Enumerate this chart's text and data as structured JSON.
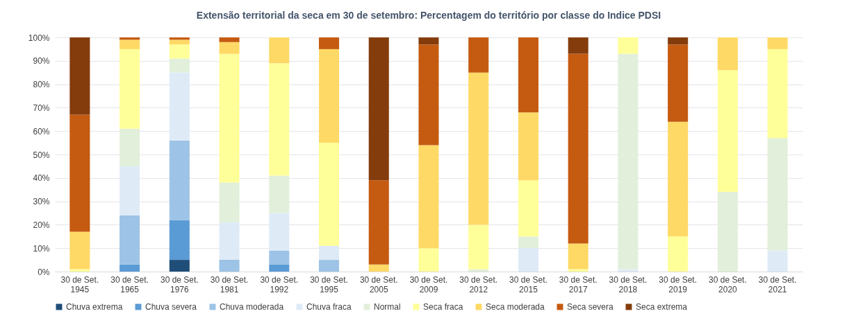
{
  "chart_data": {
    "type": "bar",
    "stacked": true,
    "title": "Extensão territorial da seca em 30 de setembro: Percentagem do território por classe do Indice PDSI",
    "categories": [
      "30 de Set. 1945",
      "30 de Set. 1965",
      "30 de Set. 1976",
      "30 de Set. 1981",
      "30 de Set. 1992",
      "30 de Set. 1995",
      "30 de Set. 2005",
      "30 de Set. 2009",
      "30 de Set. 2012",
      "30 de Set. 2015",
      "30 de Set. 2017",
      "30 de Set. 2018",
      "30 de Set. 2019",
      "30 de Set. 2020",
      "30 de Set. 2021"
    ],
    "series": [
      {
        "name": "Chuva extrema",
        "color": "#1f4e79",
        "values": [
          0,
          0,
          5,
          0,
          0,
          0,
          0,
          0,
          0,
          0,
          0,
          0,
          0,
          0,
          0
        ]
      },
      {
        "name": "Chuva severa",
        "color": "#5b9bd5",
        "values": [
          0,
          3,
          17,
          0,
          3,
          0,
          0,
          0,
          0,
          0,
          0,
          0,
          0,
          0,
          0
        ]
      },
      {
        "name": "Chuva moderada",
        "color": "#9dc3e6",
        "values": [
          0,
          21,
          34,
          5,
          6,
          5,
          0,
          0,
          0,
          0,
          0,
          0,
          0,
          0,
          0
        ]
      },
      {
        "name": "Chuva fraca",
        "color": "#deebf7",
        "values": [
          0,
          21,
          29,
          16,
          16,
          6,
          0,
          0,
          0,
          10,
          0,
          1,
          0,
          0,
          9
        ]
      },
      {
        "name": "Normal",
        "color": "#e2efda",
        "values": [
          0,
          16,
          6,
          17,
          16,
          0,
          0,
          0,
          1,
          5,
          0,
          92,
          0,
          34,
          48
        ]
      },
      {
        "name": "Seca fraca",
        "color": "#ffff99",
        "values": [
          1,
          34,
          6,
          55,
          48,
          44,
          0,
          10,
          19,
          24,
          1,
          7,
          15,
          52,
          38
        ]
      },
      {
        "name": "Seca moderada",
        "color": "#ffd966",
        "values": [
          16,
          4,
          2,
          5,
          11,
          40,
          3,
          44,
          65,
          29,
          11,
          0,
          49,
          14,
          5
        ]
      },
      {
        "name": "Seca severa",
        "color": "#c55a11",
        "values": [
          50,
          1,
          1,
          2,
          0,
          5,
          36,
          43,
          15,
          32,
          81,
          0,
          33,
          0,
          0
        ]
      },
      {
        "name": "Seca extrema",
        "color": "#843c0c",
        "values": [
          33,
          0,
          0,
          0,
          0,
          0,
          61,
          3,
          0,
          0,
          7,
          0,
          3,
          0,
          0
        ]
      }
    ],
    "ylim": [
      0,
      100
    ],
    "yticks": [
      {
        "value": 0,
        "label": "0%"
      },
      {
        "value": 10,
        "label": "10%"
      },
      {
        "value": 20,
        "label": "20%"
      },
      {
        "value": 30,
        "label": "30%"
      },
      {
        "value": 40,
        "label": "40%"
      },
      {
        "value": 50,
        "label": "50%"
      },
      {
        "value": 60,
        "label": "60%"
      },
      {
        "value": 70,
        "label": "70%"
      },
      {
        "value": 80,
        "label": "80%"
      },
      {
        "value": 90,
        "label": "90%"
      },
      {
        "value": 100,
        "label": "100%"
      }
    ],
    "grid": "y",
    "legend": "bottom"
  }
}
